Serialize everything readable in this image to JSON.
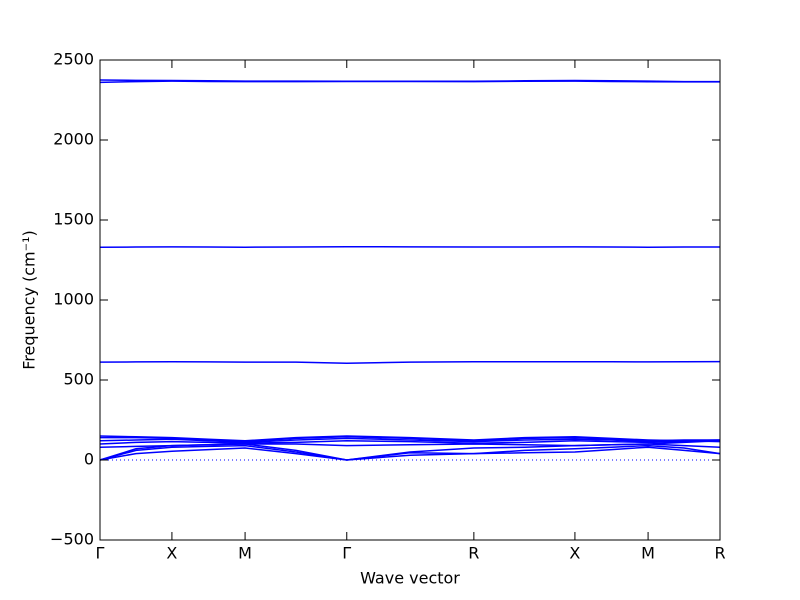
{
  "chart_data": {
    "type": "line",
    "x_label": "Wave vector",
    "y_label": "Frequency (cm⁻¹)",
    "x": [
      0,
      0.058,
      0.116,
      0.175,
      0.234,
      0.316,
      0.398,
      0.5,
      0.603,
      0.685,
      0.766,
      0.825,
      0.884,
      0.942,
      1
    ],
    "xlim": [
      0,
      1
    ],
    "xticks": [
      {
        "value": 0,
        "label": "Γ"
      },
      {
        "value": 0.116,
        "label": "X"
      },
      {
        "value": 0.234,
        "label": "M"
      },
      {
        "value": 0.398,
        "label": "Γ"
      },
      {
        "value": 0.603,
        "label": "R"
      },
      {
        "value": 0.766,
        "label": "X"
      },
      {
        "value": 0.884,
        "label": "M"
      },
      {
        "value": 1,
        "label": "R"
      }
    ],
    "ylim": [
      -500,
      2500
    ],
    "yticks": [
      {
        "value": -500,
        "label": "−500"
      },
      0,
      500,
      1000,
      1500,
      2000,
      2500
    ],
    "zero_line": true,
    "series": [
      {
        "color": "#0000ff",
        "values": [
          0,
          40,
          55,
          65,
          75,
          40,
          0,
          30,
          40,
          45,
          50,
          65,
          80,
          60,
          40
        ]
      },
      {
        "color": "#0000ff",
        "values": [
          0,
          60,
          80,
          85,
          90,
          50,
          0,
          45,
          40,
          60,
          70,
          80,
          90,
          75,
          40
        ]
      },
      {
        "color": "#0000ff",
        "values": [
          0,
          70,
          90,
          95,
          100,
          60,
          0,
          50,
          75,
          80,
          90,
          95,
          100,
          90,
          80
        ]
      },
      {
        "color": "#0000ff",
        "values": [
          80,
          85,
          90,
          95,
          100,
          100,
          90,
          95,
          100,
          95,
          90,
          95,
          100,
          110,
          120
        ]
      },
      {
        "color": "#0000ff",
        "values": [
          100,
          110,
          115,
          110,
          105,
          110,
          120,
          115,
          105,
          110,
          120,
          115,
          110,
          115,
          120
        ]
      },
      {
        "color": "#0000ff",
        "values": [
          120,
          125,
          130,
          120,
          110,
          125,
          135,
          125,
          115,
          125,
          130,
          125,
          115,
          120,
          125
        ]
      },
      {
        "color": "#0000ff",
        "values": [
          140,
          140,
          135,
          125,
          115,
          135,
          145,
          135,
          120,
          135,
          140,
          130,
          120,
          125,
          125
        ]
      },
      {
        "color": "#0000ff",
        "values": [
          150,
          145,
          140,
          130,
          120,
          140,
          150,
          140,
          125,
          140,
          145,
          135,
          125,
          120,
          115
        ]
      },
      {
        "color": "#0000ff",
        "values": [
          612,
          613,
          614,
          613,
          612,
          612,
          605,
          612,
          614,
          614,
          614,
          614,
          613,
          614,
          615
        ]
      },
      {
        "color": "#0000ff",
        "values": [
          1330,
          1331,
          1332,
          1331,
          1330,
          1331,
          1333,
          1332,
          1331,
          1331,
          1332,
          1331,
          1330,
          1331,
          1331
        ]
      },
      {
        "color": "#0000ff",
        "values": [
          2360,
          2365,
          2368,
          2366,
          2365,
          2365,
          2366,
          2366,
          2365,
          2367,
          2368,
          2366,
          2364,
          2363,
          2363
        ]
      },
      {
        "color": "#0000ff",
        "values": [
          2375,
          2373,
          2372,
          2370,
          2368,
          2368,
          2367,
          2367,
          2367,
          2370,
          2372,
          2370,
          2368,
          2365,
          2365
        ]
      }
    ]
  }
}
